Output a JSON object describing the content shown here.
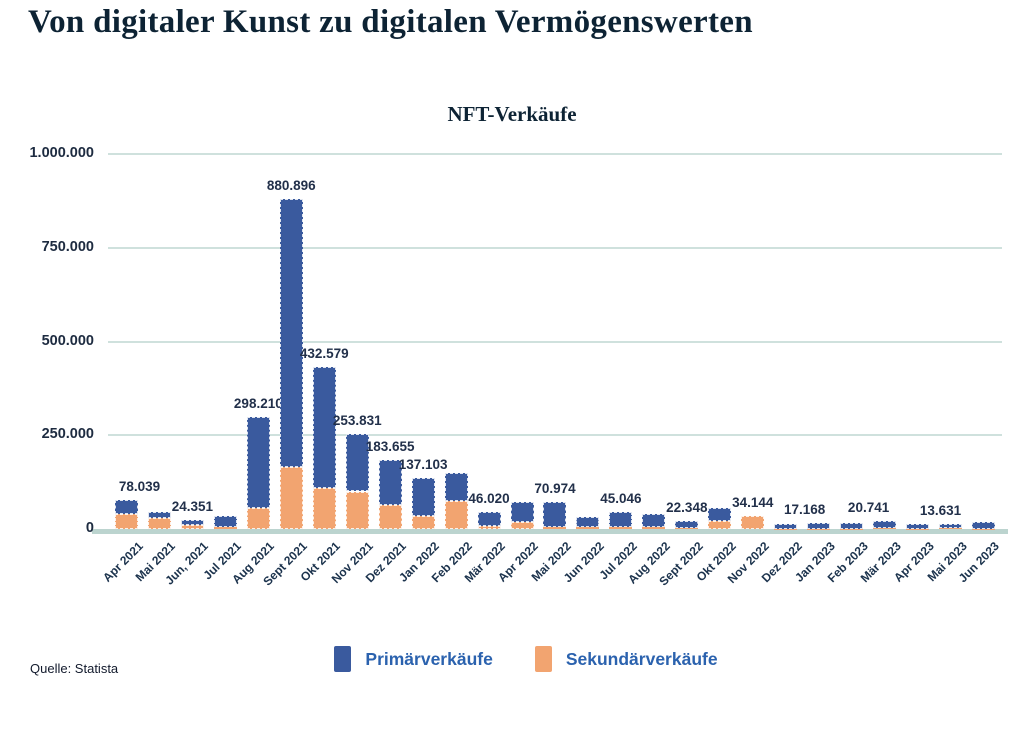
{
  "page": {
    "headline": "Von digitaler Kunst zu digitalen Vermögenswerten",
    "source": "Quelle: Statista"
  },
  "chart_data": {
    "type": "bar",
    "stacked": true,
    "title": "NFT-Verkäufe",
    "grid": true,
    "legend_position": "bottom",
    "ylim": [
      0,
      1000000
    ],
    "ytick_values": [
      1000000,
      750000,
      500000,
      250000,
      0
    ],
    "ytick_labels": [
      "1.000.000",
      "750.000",
      "500.000",
      "250.000",
      "0"
    ],
    "categories": [
      "Apr 2021",
      "Mai 2021",
      "Jun, 2021",
      "Jul 2021",
      "Aug 2021",
      "Sept 2021",
      "Okt 2021",
      "Nov 2021",
      "Dez 2021",
      "Jan 2022",
      "Feb 2022",
      "Mär 2022",
      "Apr 2022",
      "Mai 2022",
      "Jun 2022",
      "Jul 2022",
      "Aug 2022",
      "Sept 2022",
      "Okt 2022",
      "Nov 2022",
      "Dez 2022",
      "Jan 2023",
      "Feb 2023",
      "Mär 2023",
      "Apr 2023",
      "Mai 2023",
      "Jun 2023"
    ],
    "series": [
      {
        "name": "Primärverkäufe",
        "color": "#3a5a9e",
        "values": [
          37039,
          16000,
          13351,
          28000,
          243210,
          715896,
          322579,
          153831,
          118655,
          102103,
          75000,
          38020,
          52000,
          65974,
          28000,
          39046,
          34000,
          19348,
          34000,
          0,
          13000,
          16168,
          15000,
          18741,
          13000,
          12131,
          17000
        ]
      },
      {
        "name": "Sekundärverkäufe",
        "color": "#f2a470",
        "values": [
          41000,
          30000,
          11000,
          6000,
          55000,
          165000,
          110000,
          100000,
          65000,
          35000,
          75000,
          8000,
          20000,
          5000,
          5000,
          6000,
          5000,
          3000,
          22000,
          34144,
          1000,
          1000,
          1000,
          2000,
          1000,
          1500,
          1000
        ]
      }
    ],
    "totals": [
      78039,
      46000,
      24351,
      34000,
      298210,
      880896,
      432579,
      253831,
      183655,
      137103,
      150000,
      46020,
      72000,
      70974,
      33000,
      45046,
      39000,
      22348,
      56000,
      34144,
      14000,
      17168,
      16000,
      20741,
      14000,
      13631,
      18000
    ],
    "data_labels": [
      "78.039",
      null,
      "24.351",
      null,
      "298.210",
      "880.896",
      "432.579",
      "253.831",
      "183.655",
      "137.103",
      null,
      "46.020",
      null,
      "70.974",
      null,
      "45.046",
      null,
      "22.348",
      null,
      "34.144",
      null,
      "17.168",
      null,
      "20.741",
      null,
      "13.631",
      null
    ],
    "label_dx": {
      "0": 13,
      "21": -14,
      "23": -16,
      "25": -10
    },
    "colors": {
      "grid": "#cfe1dd",
      "baseline": "#bcd4cf",
      "axis_text": "#1d2b40",
      "data_label_text": "#22304a",
      "legend_text": "#2b62ae",
      "heading_text": "#0d2334"
    }
  }
}
